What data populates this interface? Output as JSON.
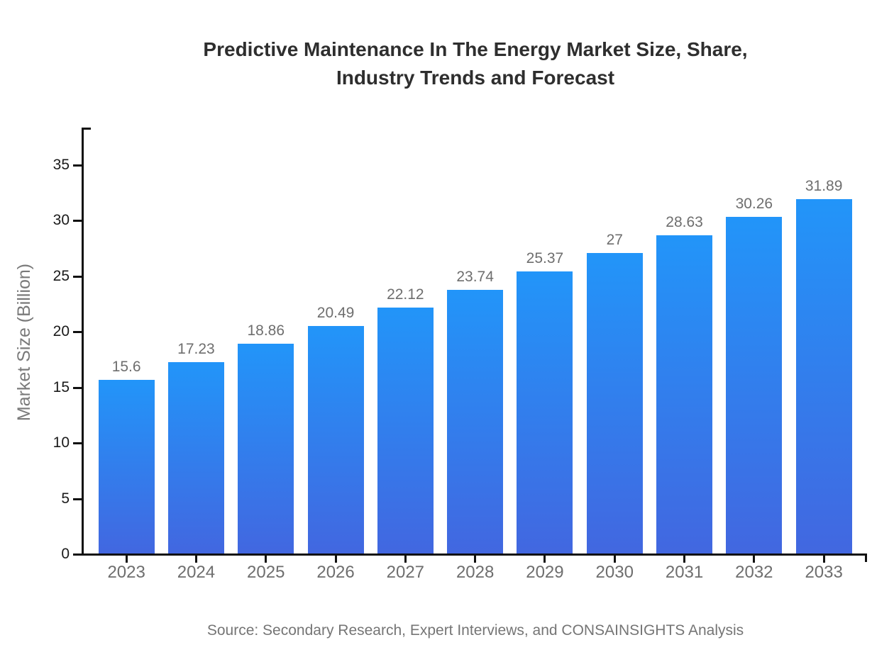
{
  "chart_data": {
    "type": "bar",
    "title": "Predictive Maintenance In The Energy Market Size, Share, Industry Trends and Forecast",
    "title_lines": [
      "Predictive Maintenance In The Energy Market Size, Share,",
      "Industry Trends and Forecast"
    ],
    "categories": [
      "2023",
      "2024",
      "2025",
      "2026",
      "2027",
      "2028",
      "2029",
      "2030",
      "2031",
      "2032",
      "2033"
    ],
    "values": [
      15.6,
      17.23,
      18.86,
      20.49,
      22.12,
      23.74,
      25.37,
      27,
      28.63,
      30.26,
      31.89
    ],
    "xlabel": "",
    "ylabel": "Market Size (Billion)",
    "ylim": [
      0,
      35
    ],
    "yticks": [
      0,
      5,
      10,
      15,
      20,
      25,
      30,
      35
    ],
    "grid": false,
    "legend_position": "none",
    "colors": {
      "bar_gradient_top": "#2295f9",
      "bar_gradient_bottom": "#4267e0",
      "axis": "#111111",
      "ytick_label": "#1a1a1a",
      "category_label": "#6e6e6e",
      "value_label": "#6e6e6e",
      "title": "#2e2e2e",
      "ylabel": "#7a7a7a",
      "source": "#757575"
    }
  },
  "footer": {
    "source": "Source: Secondary Research, Expert Interviews, and CONSAINSIGHTS Analysis"
  }
}
